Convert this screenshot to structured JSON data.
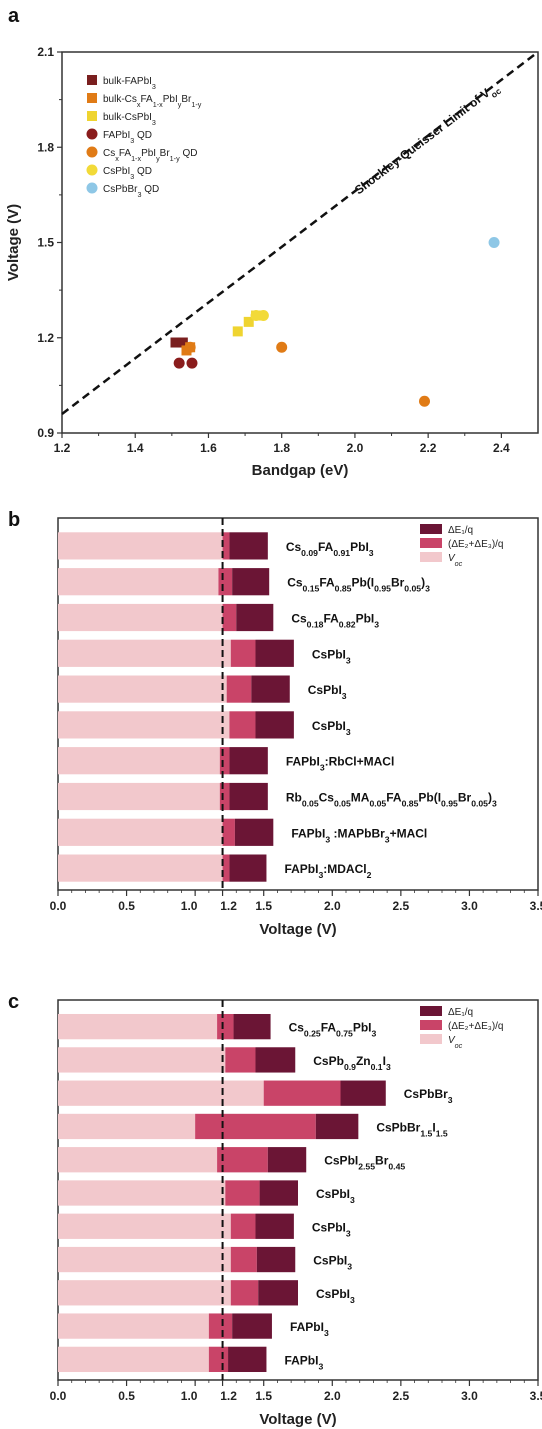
{
  "chart_data": [
    {
      "panel": "a",
      "type": "scatter",
      "xlabel": "Bandgap (eV)",
      "ylabel": "Voltage (V)",
      "xlim": [
        1.2,
        2.5
      ],
      "ylim": [
        0.9,
        2.1
      ],
      "xticks": [
        "1.2",
        "1.4",
        "1.6",
        "1.8",
        "2.0",
        "2.2",
        "2.4"
      ],
      "yticks": [
        "0.9",
        "1.2",
        "1.5",
        "1.8",
        "2.1"
      ],
      "legend_position": "top-left",
      "limit_line": {
        "label": "Shockley-Queisser Limit of V",
        "label_sub": "oc",
        "x": [
          1.2,
          2.5
        ],
        "y": [
          0.96,
          2.1
        ]
      },
      "series": [
        {
          "name": "bulk-FAPbI",
          "name_sub": "3",
          "marker": "square",
          "color": "#7a1f1f",
          "points": [
            [
              1.51,
              1.185
            ],
            [
              1.53,
              1.185
            ]
          ]
        },
        {
          "name": "bulk-Cs",
          "name_sub": "x",
          "name_mid": "FA",
          "name_sub2": "1-x",
          "name_mid2": "PbI",
          "name_sub3": "y",
          "name_mid3": "Br",
          "name_sub4": "1-y",
          "marker": "square",
          "color": "#e07b16",
          "points": [
            [
              1.54,
              1.16
            ],
            [
              1.55,
              1.17
            ]
          ]
        },
        {
          "name": "bulk-CsPbI",
          "name_sub": "3",
          "marker": "square",
          "color": "#efd430",
          "points": [
            [
              1.68,
              1.22
            ],
            [
              1.71,
              1.25
            ],
            [
              1.73,
              1.27
            ]
          ]
        },
        {
          "name": "FAPbI",
          "name_sub": "3",
          "name_after": " QD",
          "marker": "circle",
          "color": "#8a1c1c",
          "points": [
            [
              1.52,
              1.12
            ],
            [
              1.555,
              1.12
            ]
          ]
        },
        {
          "name": "Cs",
          "name_sub": "x",
          "name_mid": "FA",
          "name_sub2": "1-x",
          "name_mid2": "PbI",
          "name_sub3": "y",
          "name_mid3": "Br",
          "name_sub4": "1-y",
          "name_after": " QD",
          "marker": "circle",
          "color": "#e07b16",
          "points": [
            [
              1.55,
              1.17
            ],
            [
              1.8,
              1.17
            ],
            [
              2.19,
              1.0
            ]
          ]
        },
        {
          "name": "CsPbI",
          "name_sub": "3",
          "name_after": " QD",
          "marker": "circle",
          "color": "#f2da38",
          "points": [
            [
              1.73,
              1.27
            ],
            [
              1.75,
              1.27
            ]
          ]
        },
        {
          "name": "CsPbBr",
          "name_sub": "3",
          "name_after": " QD",
          "marker": "circle",
          "color": "#8ec7e6",
          "points": [
            [
              2.38,
              1.5
            ]
          ]
        }
      ]
    },
    {
      "panel": "b",
      "type": "bar",
      "orientation": "horizontal-stacked",
      "xlabel": "Voltage (V)",
      "xlim": [
        0,
        3.5
      ],
      "xticks": [
        "0.0",
        "0.5",
        "1.0",
        "1.2",
        "1.5",
        "2.0",
        "2.5",
        "3.0",
        "3.5"
      ],
      "xtick_values": [
        0,
        0.5,
        1.0,
        1.2,
        1.5,
        2.0,
        2.5,
        3.0,
        3.5
      ],
      "reference_line": 1.2,
      "legend": [
        "ΔE₁/q",
        "(ΔE₂+ΔE₃)/q",
        "V_oc"
      ],
      "legend_colors": [
        "#6b1535",
        "#c94468",
        "#f2c8cc"
      ],
      "bars": [
        {
          "label": [
            [
              "Cs",
              ""
            ],
            [
              "0.09",
              "sub"
            ],
            [
              "FA",
              ""
            ],
            [
              "0.91",
              "sub"
            ],
            [
              "PbI",
              ""
            ],
            [
              "3",
              "sub"
            ]
          ],
          "voc": 1.2,
          "de23": 0.05,
          "de1": 0.28
        },
        {
          "label": [
            [
              "Cs",
              ""
            ],
            [
              "0.15",
              "sub"
            ],
            [
              "FA",
              ""
            ],
            [
              "0.85",
              "sub"
            ],
            [
              "Pb(I",
              ""
            ],
            [
              "0.95",
              "sub"
            ],
            [
              "Br",
              ""
            ],
            [
              "0.05",
              "sub"
            ],
            [
              ")",
              ""
            ],
            [
              "3",
              "sub"
            ]
          ],
          "voc": 1.17,
          "de23": 0.1,
          "de1": 0.27
        },
        {
          "label": [
            [
              "Cs",
              ""
            ],
            [
              "0.18",
              "sub"
            ],
            [
              "FA",
              ""
            ],
            [
              "0.82",
              "sub"
            ],
            [
              "PbI",
              ""
            ],
            [
              "3",
              "sub"
            ]
          ],
          "voc": 1.2,
          "de23": 0.1,
          "de1": 0.27
        },
        {
          "label": [
            [
              "CsPbI",
              ""
            ],
            [
              "3",
              "sub"
            ]
          ],
          "voc": 1.26,
          "de23": 0.18,
          "de1": 0.28
        },
        {
          "label": [
            [
              "CsPbI",
              ""
            ],
            [
              "3",
              "sub"
            ]
          ],
          "voc": 1.23,
          "de23": 0.18,
          "de1": 0.28
        },
        {
          "label": [
            [
              "CsPbI",
              ""
            ],
            [
              "3",
              "sub"
            ]
          ],
          "voc": 1.25,
          "de23": 0.19,
          "de1": 0.28
        },
        {
          "label": [
            [
              "FAPbI",
              ""
            ],
            [
              "3",
              "sub"
            ],
            [
              ":RbCl+MACl",
              ""
            ]
          ],
          "voc": 1.18,
          "de23": 0.07,
          "de1": 0.28
        },
        {
          "label": [
            [
              "Rb",
              ""
            ],
            [
              "0.05",
              "sub"
            ],
            [
              "Cs",
              ""
            ],
            [
              "0.05",
              "sub"
            ],
            [
              "MA",
              ""
            ],
            [
              "0.05",
              "sub"
            ],
            [
              "FA",
              ""
            ],
            [
              "0.85",
              "sub"
            ],
            [
              "Pb(I",
              ""
            ],
            [
              "0.95",
              "sub"
            ],
            [
              "Br",
              ""
            ],
            [
              "0.05",
              "sub"
            ],
            [
              ")",
              ""
            ],
            [
              "3",
              "sub"
            ]
          ],
          "voc": 1.18,
          "de23": 0.07,
          "de1": 0.28
        },
        {
          "label": [
            [
              "FAPbI",
              ""
            ],
            [
              "3",
              "sub"
            ],
            [
              " :MAPbBr",
              ""
            ],
            [
              "3",
              "sub"
            ],
            [
              "+MACl",
              ""
            ]
          ],
          "voc": 1.2,
          "de23": 0.09,
          "de1": 0.28
        },
        {
          "label": [
            [
              "FAPbI",
              ""
            ],
            [
              "3",
              "sub"
            ],
            [
              ":MDACl",
              ""
            ],
            [
              "2",
              "sub"
            ]
          ],
          "voc": 1.2,
          "de23": 0.05,
          "de1": 0.27
        }
      ]
    },
    {
      "panel": "c",
      "type": "bar",
      "orientation": "horizontal-stacked",
      "xlabel": "Voltage (V)",
      "xlim": [
        0,
        3.5
      ],
      "xticks": [
        "0.0",
        "0.5",
        "1.0",
        "1.2",
        "1.5",
        "2.0",
        "2.5",
        "3.0",
        "3.5"
      ],
      "xtick_values": [
        0,
        0.5,
        1.0,
        1.2,
        1.5,
        2.0,
        2.5,
        3.0,
        3.5
      ],
      "reference_line": 1.2,
      "legend": [
        "ΔE₁/q",
        "(ΔE₂+ΔE₃)/q",
        "V_oc"
      ],
      "legend_colors": [
        "#6b1535",
        "#c94468",
        "#f2c8cc"
      ],
      "bars": [
        {
          "label": [
            [
              "Cs",
              ""
            ],
            [
              "0.25",
              "sub"
            ],
            [
              "FA",
              ""
            ],
            [
              "0.75",
              "sub"
            ],
            [
              "PbI",
              ""
            ],
            [
              "3",
              "sub"
            ]
          ],
          "voc": 1.16,
          "de23": 0.12,
          "de1": 0.27
        },
        {
          "label": [
            [
              "CsPb",
              ""
            ],
            [
              "0.9",
              "sub"
            ],
            [
              "Zn",
              ""
            ],
            [
              "0.1",
              "sub"
            ],
            [
              "I",
              ""
            ],
            [
              "3",
              "sub"
            ]
          ],
          "voc": 1.22,
          "de23": 0.22,
          "de1": 0.29
        },
        {
          "label": [
            [
              "CsPbBr",
              ""
            ],
            [
              "3",
              "sub"
            ]
          ],
          "voc": 1.5,
          "de23": 0.56,
          "de1": 0.33
        },
        {
          "label": [
            [
              "CsPbBr",
              ""
            ],
            [
              "1.5",
              "sub"
            ],
            [
              "I",
              ""
            ],
            [
              "1.5",
              "sub"
            ]
          ],
          "voc": 1.0,
          "de23": 0.88,
          "de1": 0.31
        },
        {
          "label": [
            [
              "CsPbI",
              ""
            ],
            [
              "2.55",
              "sub"
            ],
            [
              "Br",
              ""
            ],
            [
              "0.45",
              "sub"
            ]
          ],
          "voc": 1.16,
          "de23": 0.37,
          "de1": 0.28
        },
        {
          "label": [
            [
              "CsPbI",
              ""
            ],
            [
              "3",
              "sub"
            ]
          ],
          "voc": 1.22,
          "de23": 0.25,
          "de1": 0.28
        },
        {
          "label": [
            [
              "CsPbI",
              ""
            ],
            [
              "3",
              "sub"
            ]
          ],
          "voc": 1.26,
          "de23": 0.18,
          "de1": 0.28
        },
        {
          "label": [
            [
              "CsPbI",
              ""
            ],
            [
              "3",
              "sub"
            ]
          ],
          "voc": 1.26,
          "de23": 0.19,
          "de1": 0.28
        },
        {
          "label": [
            [
              "CsPbI",
              ""
            ],
            [
              "3",
              "sub"
            ]
          ],
          "voc": 1.26,
          "de23": 0.2,
          "de1": 0.29
        },
        {
          "label": [
            [
              "FAPbI",
              ""
            ],
            [
              "3",
              "sub"
            ]
          ],
          "voc": 1.1,
          "de23": 0.17,
          "de1": 0.29
        },
        {
          "label": [
            [
              "FAPbI",
              ""
            ],
            [
              "3",
              "sub"
            ]
          ],
          "voc": 1.1,
          "de23": 0.14,
          "de1": 0.28
        }
      ]
    }
  ]
}
